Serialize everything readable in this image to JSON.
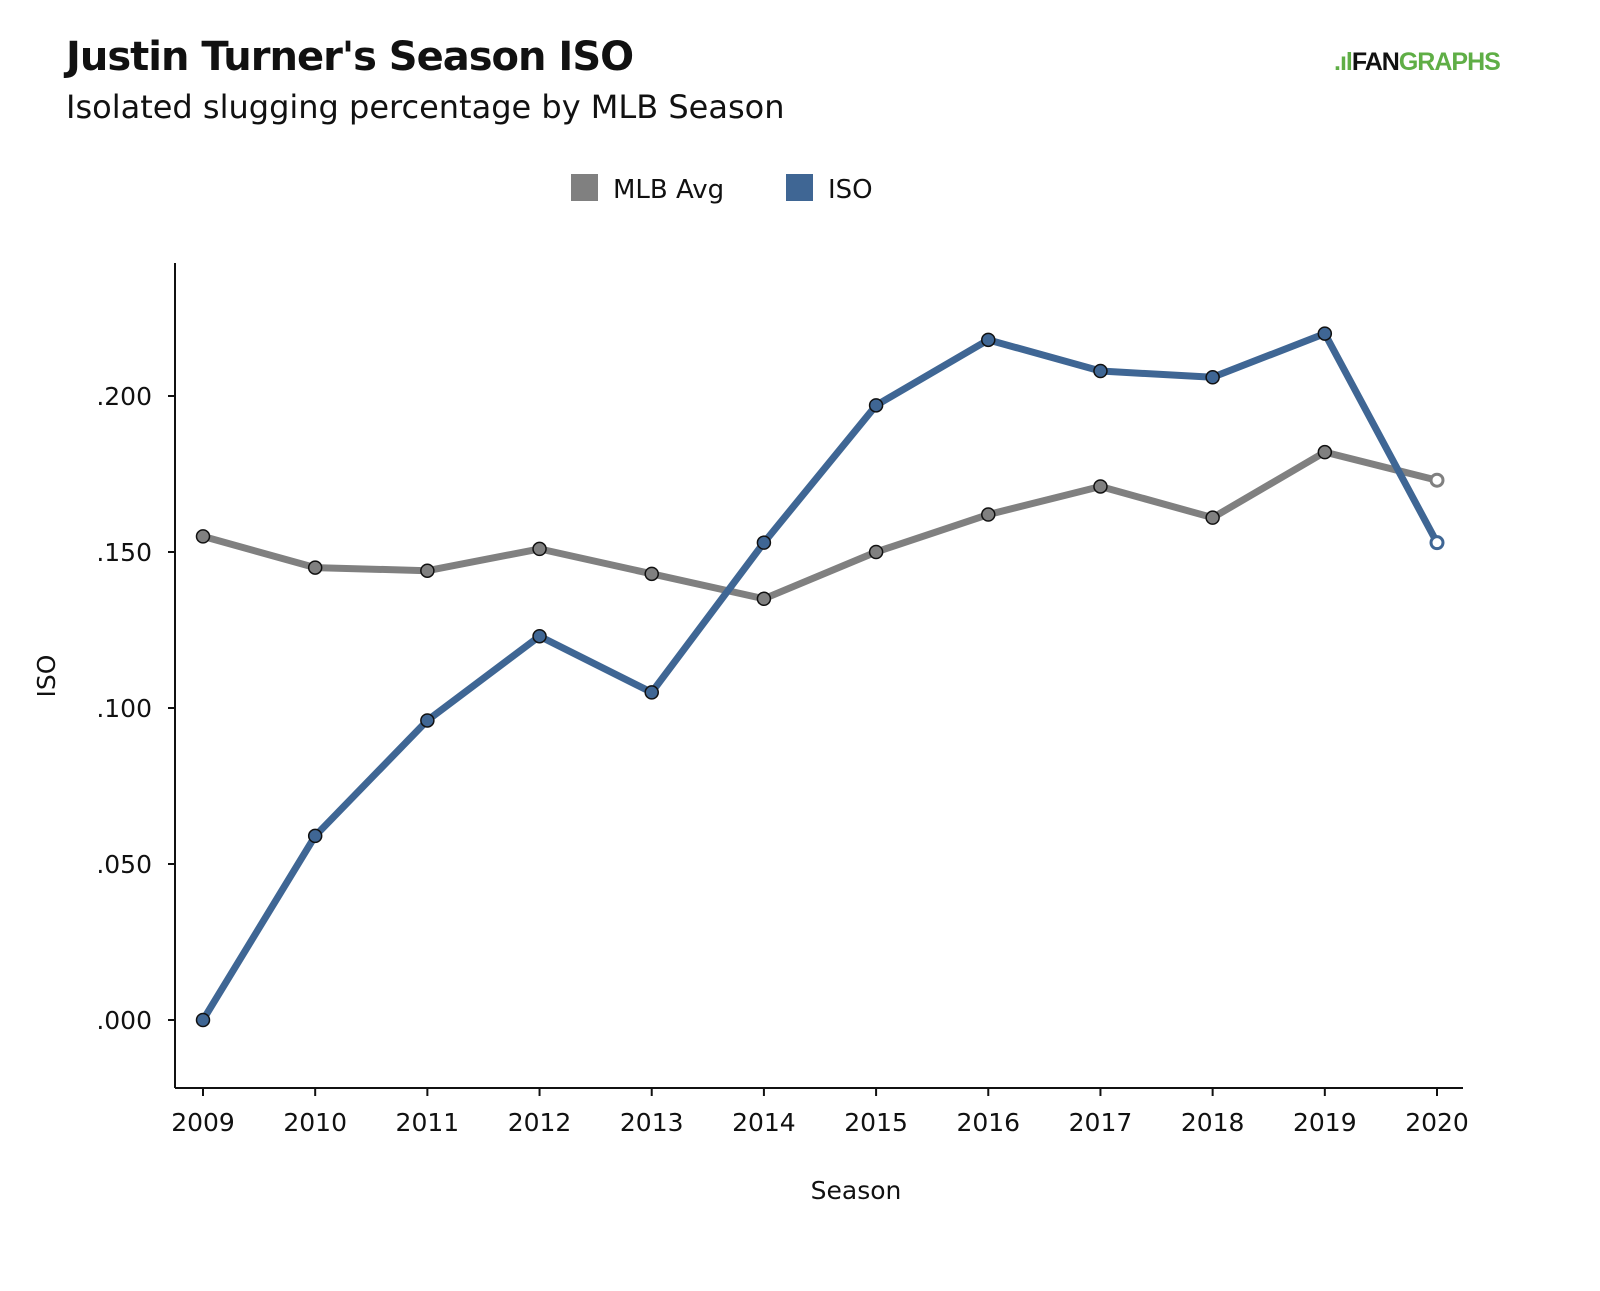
{
  "chart_data": {
    "type": "line",
    "title": "Justin Turner's Season ISO",
    "subtitle": "Isolated slugging percentage by MLB Season",
    "xlabel": "Season",
    "ylabel": "ISO",
    "x": [
      2009,
      2010,
      2011,
      2012,
      2013,
      2014,
      2015,
      2016,
      2017,
      2018,
      2019,
      2020
    ],
    "ylim": [
      -0.022,
      0.243
    ],
    "yticks": [
      0.0,
      0.05,
      0.1,
      0.15,
      0.2
    ],
    "ytick_labels": [
      ".000",
      ".050",
      ".100",
      ".150",
      ".200"
    ],
    "grid": false,
    "legend": "top-center",
    "series": [
      {
        "name": "MLB Avg",
        "color": "#808080",
        "values": [
          0.155,
          0.145,
          0.144,
          0.151,
          0.143,
          0.135,
          0.15,
          0.162,
          0.171,
          0.161,
          0.182,
          0.173
        ]
      },
      {
        "name": "ISO",
        "color": "#3f6694",
        "values": [
          0.0,
          0.059,
          0.096,
          0.123,
          0.105,
          0.153,
          0.197,
          0.218,
          0.208,
          0.206,
          0.22,
          0.153
        ]
      }
    ],
    "note_last_point_hollow": true
  },
  "logo": {
    "prefix": ".",
    "fan": "FAN",
    "graphs": "GRAPHS"
  }
}
